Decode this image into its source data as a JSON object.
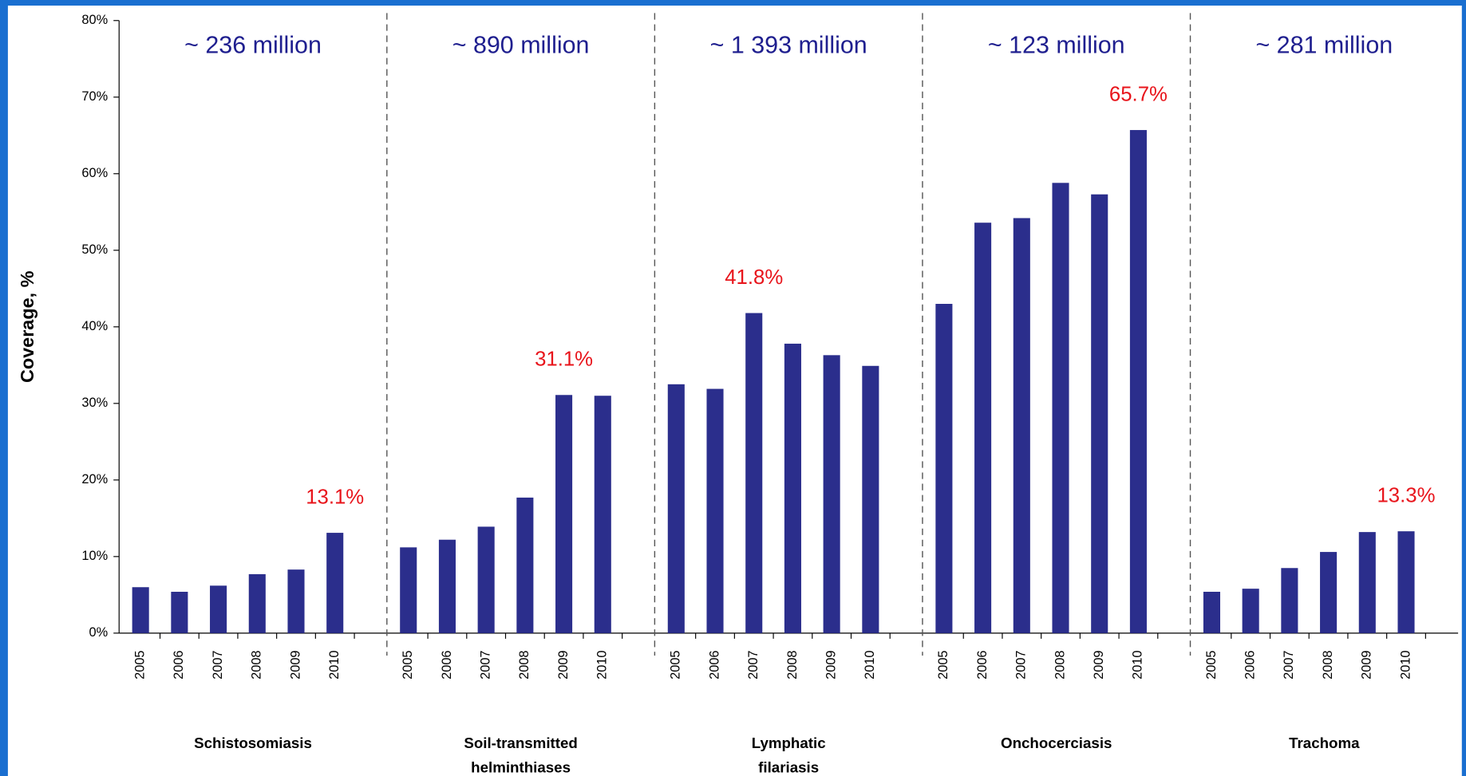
{
  "chart_data": {
    "type": "bar",
    "y_label": "Coverage, %",
    "ylim": [
      0,
      80
    ],
    "yticks": [
      {
        "value": 0,
        "label": "0%"
      },
      {
        "value": 10,
        "label": "10%"
      },
      {
        "value": 20,
        "label": "20%"
      },
      {
        "value": 30,
        "label": "30%"
      },
      {
        "value": 40,
        "label": "40%"
      },
      {
        "value": 50,
        "label": "50%"
      },
      {
        "value": 60,
        "label": "60%"
      },
      {
        "value": 70,
        "label": "70%"
      },
      {
        "value": 80,
        "label": "80%"
      }
    ],
    "color": "#2b2e8c",
    "value_label_color": "#e8141b",
    "population_color": "#1f1f8f",
    "groups": [
      {
        "name": [
          "Schistosomiasis"
        ],
        "population": "~ 236 million",
        "categories": [
          "2005",
          "2006",
          "2007",
          "2008",
          "2009",
          "2010"
        ],
        "values": [
          6.0,
          5.4,
          6.2,
          7.7,
          8.3,
          13.1
        ],
        "value_labels": [
          null,
          null,
          null,
          null,
          null,
          "13.1%"
        ]
      },
      {
        "name": [
          "Soil-transmitted",
          "helminthiases"
        ],
        "population": "~ 890 million",
        "categories": [
          "2005",
          "2006",
          "2007",
          "2008",
          "2009",
          "2010"
        ],
        "values": [
          11.2,
          12.2,
          13.9,
          17.7,
          31.1,
          31.0
        ],
        "value_labels": [
          null,
          null,
          null,
          null,
          "31.1%",
          null
        ]
      },
      {
        "name": [
          "Lymphatic",
          "filariasis"
        ],
        "population": "~ 1 393 million",
        "categories": [
          "2005",
          "2006",
          "2007",
          "2008",
          "2009",
          "2010"
        ],
        "values": [
          32.5,
          31.9,
          41.8,
          37.8,
          36.3,
          34.9
        ],
        "value_labels": [
          null,
          null,
          "41.8%",
          null,
          null,
          null
        ]
      },
      {
        "name": [
          "Onchocerciasis"
        ],
        "population": "~ 123 million",
        "categories": [
          "2005",
          "2006",
          "2007",
          "2008",
          "2009",
          "2010"
        ],
        "values": [
          43.0,
          53.6,
          54.2,
          58.8,
          57.3,
          65.7
        ],
        "value_labels": [
          null,
          null,
          null,
          null,
          null,
          "65.7%"
        ]
      },
      {
        "name": [
          "Trachoma"
        ],
        "population": "~ 281 million",
        "categories": [
          "2005",
          "2006",
          "2007",
          "2008",
          "2009",
          "2010"
        ],
        "values": [
          5.4,
          5.8,
          8.5,
          10.6,
          13.2,
          13.3
        ],
        "value_labels": [
          null,
          null,
          null,
          null,
          null,
          "13.3%"
        ]
      }
    ]
  }
}
